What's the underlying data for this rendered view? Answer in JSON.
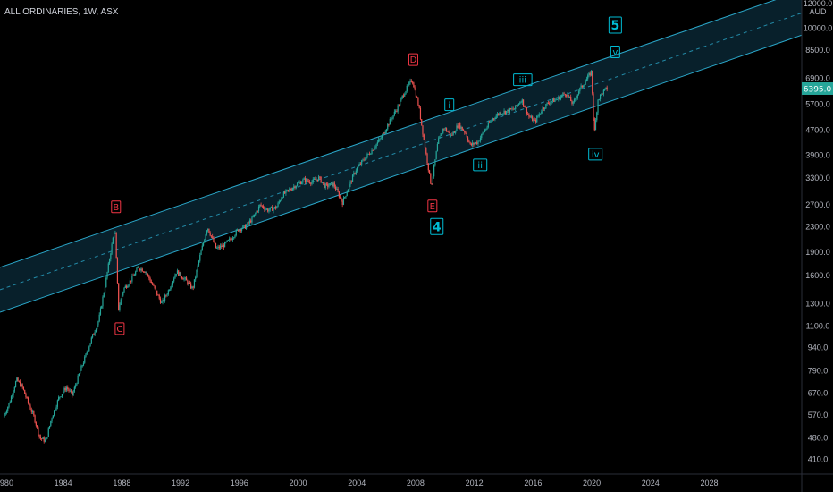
{
  "header": {
    "title": "ALL ORDINARIES, 1W, ASX",
    "currency": "AUD"
  },
  "colors": {
    "background": "#000000",
    "axis_text": "#b2b5be",
    "channel": "#2aa6c8",
    "channel_fill": "#0f3a4e",
    "candle_up": "#26a69a",
    "candle_down": "#ef5350",
    "label_red": "#f23645",
    "label_cyan": "#00bcd4",
    "price_badge": "#26a69a"
  },
  "chart_data": {
    "type": "candlestick",
    "title": "ALL ORDINARIES, 1W, ASX",
    "xlabel": "",
    "ylabel": "",
    "currency": "AUD",
    "x_range": [
      1979.7,
      2034.3
    ],
    "y_range": [
      380,
      12000
    ],
    "y_scale": "log",
    "x_ticks": [
      "1980",
      "1984",
      "1988",
      "1992",
      "1996",
      "2000",
      "2004",
      "2008",
      "2012",
      "2016",
      "2020",
      "2024",
      "2028"
    ],
    "y_ticks": [
      "12000.0",
      "10000.0",
      "8500.0",
      "6900.0",
      "5700.0",
      "4700.0",
      "3900.0",
      "3300.0",
      "2700.0",
      "2300.0",
      "1900.0",
      "1600.0",
      "1300.0",
      "1100.0",
      "940.0",
      "790.0",
      "670.0",
      "570.0",
      "480.0",
      "410.0"
    ],
    "last_price": "6395.0",
    "price_path": [
      [
        1980.0,
        560
      ],
      [
        1980.4,
        620
      ],
      [
        1980.9,
        740
      ],
      [
        1981.3,
        700
      ],
      [
        1981.6,
        640
      ],
      [
        1982.1,
        560
      ],
      [
        1982.5,
        480
      ],
      [
        1982.9,
        470
      ],
      [
        1983.3,
        560
      ],
      [
        1983.8,
        650
      ],
      [
        1984.3,
        700
      ],
      [
        1984.7,
        660
      ],
      [
        1985.2,
        780
      ],
      [
        1985.6,
        880
      ],
      [
        1986.0,
        1000
      ],
      [
        1986.5,
        1150
      ],
      [
        1987.0,
        1550
      ],
      [
        1987.6,
        2300
      ],
      [
        1987.85,
        1250
      ],
      [
        1988.2,
        1450
      ],
      [
        1988.7,
        1550
      ],
      [
        1989.2,
        1700
      ],
      [
        1989.7,
        1650
      ],
      [
        1990.3,
        1450
      ],
      [
        1990.8,
        1300
      ],
      [
        1991.3,
        1450
      ],
      [
        1991.8,
        1650
      ],
      [
        1992.4,
        1550
      ],
      [
        1992.9,
        1450
      ],
      [
        1993.4,
        1850
      ],
      [
        1993.9,
        2300
      ],
      [
        1994.5,
        1950
      ],
      [
        1995.0,
        2000
      ],
      [
        1995.5,
        2100
      ],
      [
        1996.0,
        2250
      ],
      [
        1996.5,
        2300
      ],
      [
        1997.0,
        2450
      ],
      [
        1997.5,
        2700
      ],
      [
        1998.0,
        2600
      ],
      [
        1998.6,
        2650
      ],
      [
        1999.0,
        2900
      ],
      [
        1999.6,
        3050
      ],
      [
        2000.0,
        3150
      ],
      [
        2000.5,
        3250
      ],
      [
        2001.0,
        3200
      ],
      [
        2001.5,
        3300
      ],
      [
        2001.9,
        3100
      ],
      [
        2002.5,
        3150
      ],
      [
        2003.1,
        2750
      ],
      [
        2003.6,
        3150
      ],
      [
        2004.0,
        3500
      ],
      [
        2004.6,
        3800
      ],
      [
        2005.2,
        4100
      ],
      [
        2005.8,
        4500
      ],
      [
        2006.3,
        5000
      ],
      [
        2006.8,
        5500
      ],
      [
        2007.3,
        6200
      ],
      [
        2007.85,
        6850
      ],
      [
        2008.3,
        5600
      ],
      [
        2008.7,
        4200
      ],
      [
        2009.15,
        3100
      ],
      [
        2009.6,
        4300
      ],
      [
        2010.0,
        4800
      ],
      [
        2010.5,
        4500
      ],
      [
        2011.0,
        4900
      ],
      [
        2011.5,
        4600
      ],
      [
        2011.8,
        4200
      ],
      [
        2012.3,
        4300
      ],
      [
        2012.8,
        4700
      ],
      [
        2013.3,
        5100
      ],
      [
        2013.8,
        5350
      ],
      [
        2014.3,
        5400
      ],
      [
        2014.8,
        5500
      ],
      [
        2015.3,
        5900
      ],
      [
        2015.8,
        5200
      ],
      [
        2016.2,
        5000
      ],
      [
        2016.7,
        5500
      ],
      [
        2017.2,
        5800
      ],
      [
        2017.7,
        5900
      ],
      [
        2018.3,
        6200
      ],
      [
        2018.8,
        5700
      ],
      [
        2019.2,
        6300
      ],
      [
        2019.6,
        6700
      ],
      [
        2020.05,
        7250
      ],
      [
        2020.25,
        4550
      ],
      [
        2020.5,
        5900
      ],
      [
        2020.8,
        6200
      ],
      [
        2021.1,
        6395
      ]
    ],
    "channel": {
      "lower": [
        [
          1979.7,
          1220
        ],
        [
          2034.3,
          9500
        ]
      ],
      "upper": [
        [
          1979.7,
          1700
        ],
        [
          2034.3,
          13200
        ]
      ]
    },
    "wave_labels": [
      {
        "text": "B",
        "x": 1987.6,
        "y": 2300,
        "style": "red",
        "pos": "above"
      },
      {
        "text": "C",
        "x": 1987.85,
        "y": 1250,
        "style": "red",
        "pos": "below"
      },
      {
        "text": "D",
        "x": 2007.85,
        "y": 6850,
        "style": "red",
        "pos": "above"
      },
      {
        "text": "E",
        "x": 2009.15,
        "y": 3100,
        "style": "red",
        "pos": "below"
      },
      {
        "text": "4",
        "x": 2009.45,
        "y": 3100,
        "style": "cyan-big",
        "pos": "far-below"
      },
      {
        "text": "i",
        "x": 2010.3,
        "y": 4900,
        "style": "cyan",
        "pos": "above"
      },
      {
        "text": "ii",
        "x": 2012.4,
        "y": 4200,
        "style": "cyan",
        "pos": "below"
      },
      {
        "text": "iii",
        "x": 2015.3,
        "y": 5900,
        "style": "cyan",
        "pos": "above"
      },
      {
        "text": "iv",
        "x": 2020.25,
        "y": 4550,
        "style": "cyan",
        "pos": "below"
      },
      {
        "text": "v",
        "x": 2021.6,
        "y": 7250,
        "style": "cyan",
        "pos": "above"
      },
      {
        "text": "5",
        "x": 2021.6,
        "y": 7250,
        "style": "cyan-big",
        "pos": "far-above"
      }
    ]
  }
}
